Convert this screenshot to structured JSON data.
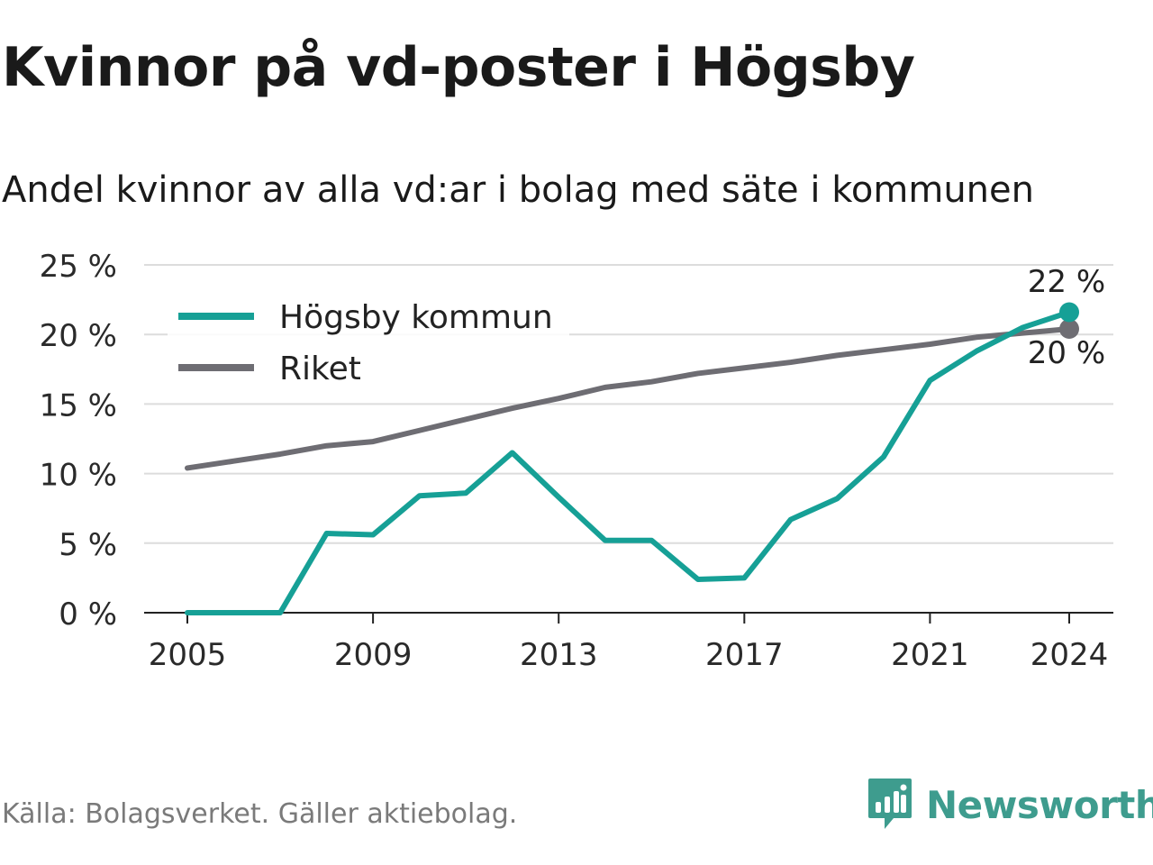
{
  "title": "Kvinnor på vd-poster i Högsby",
  "subtitle": "Andel kvinnor av alla vd:ar i bolag med säte i kommunen",
  "source": "Källa: Bolagsverket. Gäller aktiebolag.",
  "brand": {
    "name": "Newsworthy",
    "icon": "newsworthy-logo-icon",
    "color": "#3e9c8e"
  },
  "chart_data": {
    "type": "line",
    "x": [
      2005,
      2006,
      2007,
      2008,
      2009,
      2010,
      2011,
      2012,
      2013,
      2014,
      2015,
      2016,
      2017,
      2018,
      2019,
      2020,
      2021,
      2022,
      2023,
      2024
    ],
    "xticks": [
      2005,
      2009,
      2013,
      2017,
      2021,
      2024
    ],
    "xtick_labels": [
      "2005",
      "2009",
      "2013",
      "2017",
      "2021",
      "2024"
    ],
    "ylim": [
      0,
      25
    ],
    "yticks": [
      0,
      5,
      10,
      15,
      20,
      25
    ],
    "ytick_labels": [
      "0 %",
      "5 %",
      "10 %",
      "15 %",
      "20 %",
      "25 %"
    ],
    "grid": true,
    "legend_position": "top-left",
    "series": [
      {
        "name": "Högsby kommun",
        "color": "#16a096",
        "values": [
          0,
          0,
          0,
          5.7,
          5.6,
          8.4,
          8.6,
          11.5,
          8.3,
          5.2,
          5.2,
          2.4,
          2.5,
          6.7,
          8.2,
          11.2,
          16.7,
          18.8,
          20.5,
          21.6
        ],
        "end_label": "22 %"
      },
      {
        "name": "Riket",
        "color": "#6e6d73",
        "values": [
          10.4,
          10.9,
          11.4,
          12.0,
          12.3,
          13.1,
          13.9,
          14.7,
          15.4,
          16.2,
          16.6,
          17.2,
          17.6,
          18.0,
          18.5,
          18.9,
          19.3,
          19.8,
          20.1,
          20.4
        ],
        "end_label": "20 %"
      }
    ]
  }
}
